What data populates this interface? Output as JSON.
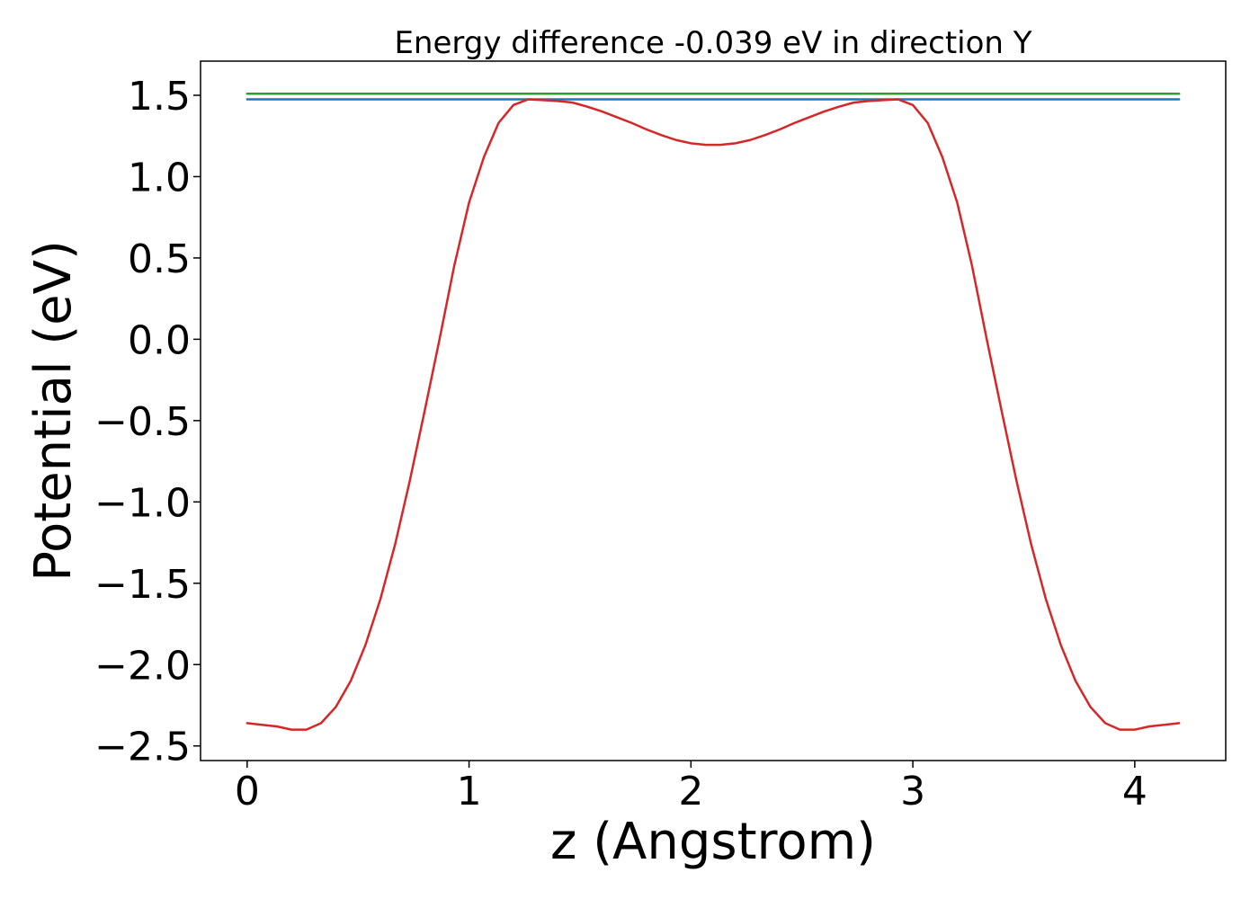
{
  "chart_data": {
    "type": "line",
    "title": "Energy difference -0.039 eV in direction Y",
    "xlabel": "z (Angstrom)",
    "ylabel": "Potential (eV)",
    "xlim": [
      -0.21,
      4.41
    ],
    "ylim": [
      -2.59,
      1.71
    ],
    "xticks": [
      0,
      1,
      2,
      3,
      4
    ],
    "xtick_labels": [
      "0",
      "1",
      "2",
      "3",
      "4"
    ],
    "yticks": [
      1.5,
      1.0,
      0.5,
      0.0,
      -0.5,
      -1.0,
      -1.5,
      -2.0,
      -2.5
    ],
    "ytick_labels": [
      "1.5",
      "1.0",
      "0.5",
      "0.0",
      "−0.5",
      "−1.0",
      "−1.5",
      "−2.0",
      "−2.5"
    ],
    "grid": false,
    "series": [
      {
        "color": "#d62728",
        "x": [
          0.0,
          0.067,
          0.133,
          0.2,
          0.267,
          0.333,
          0.4,
          0.467,
          0.533,
          0.6,
          0.667,
          0.733,
          0.8,
          0.867,
          0.933,
          1.0,
          1.067,
          1.133,
          1.2,
          1.267,
          1.333,
          1.4,
          1.467,
          1.533,
          1.6,
          1.667,
          1.733,
          1.8,
          1.867,
          1.933,
          2.0,
          2.067,
          2.133,
          2.2,
          2.267,
          2.333,
          2.4,
          2.467,
          2.533,
          2.6,
          2.667,
          2.733,
          2.8,
          2.867,
          2.933,
          3.0,
          3.067,
          3.133,
          3.2,
          3.267,
          3.333,
          3.4,
          3.467,
          3.533,
          3.6,
          3.667,
          3.733,
          3.8,
          3.867,
          3.933,
          4.0,
          4.067,
          4.133,
          4.2
        ],
        "y": [
          -2.36,
          -2.37,
          -2.38,
          -2.4,
          -2.4,
          -2.36,
          -2.26,
          -2.1,
          -1.88,
          -1.6,
          -1.26,
          -0.87,
          -0.44,
          0.0,
          0.45,
          0.84,
          1.12,
          1.33,
          1.44,
          1.475,
          1.47,
          1.465,
          1.455,
          1.43,
          1.4,
          1.365,
          1.33,
          1.29,
          1.255,
          1.225,
          1.205,
          1.195,
          1.195,
          1.205,
          1.225,
          1.255,
          1.29,
          1.33,
          1.365,
          1.4,
          1.43,
          1.455,
          1.465,
          1.47,
          1.475,
          1.44,
          1.33,
          1.12,
          0.84,
          0.45,
          0.0,
          -0.44,
          -0.87,
          -1.26,
          -1.6,
          -1.88,
          -2.1,
          -2.26,
          -2.36,
          -2.4,
          -2.4,
          -2.38,
          -2.37,
          -2.36
        ]
      },
      {
        "color": "#1f77b4",
        "x": [
          0.0,
          4.2
        ],
        "y": [
          1.475,
          1.475
        ]
      },
      {
        "color": "#2ca02c",
        "x": [
          0.0,
          4.2
        ],
        "y": [
          1.51,
          1.51
        ]
      }
    ]
  }
}
